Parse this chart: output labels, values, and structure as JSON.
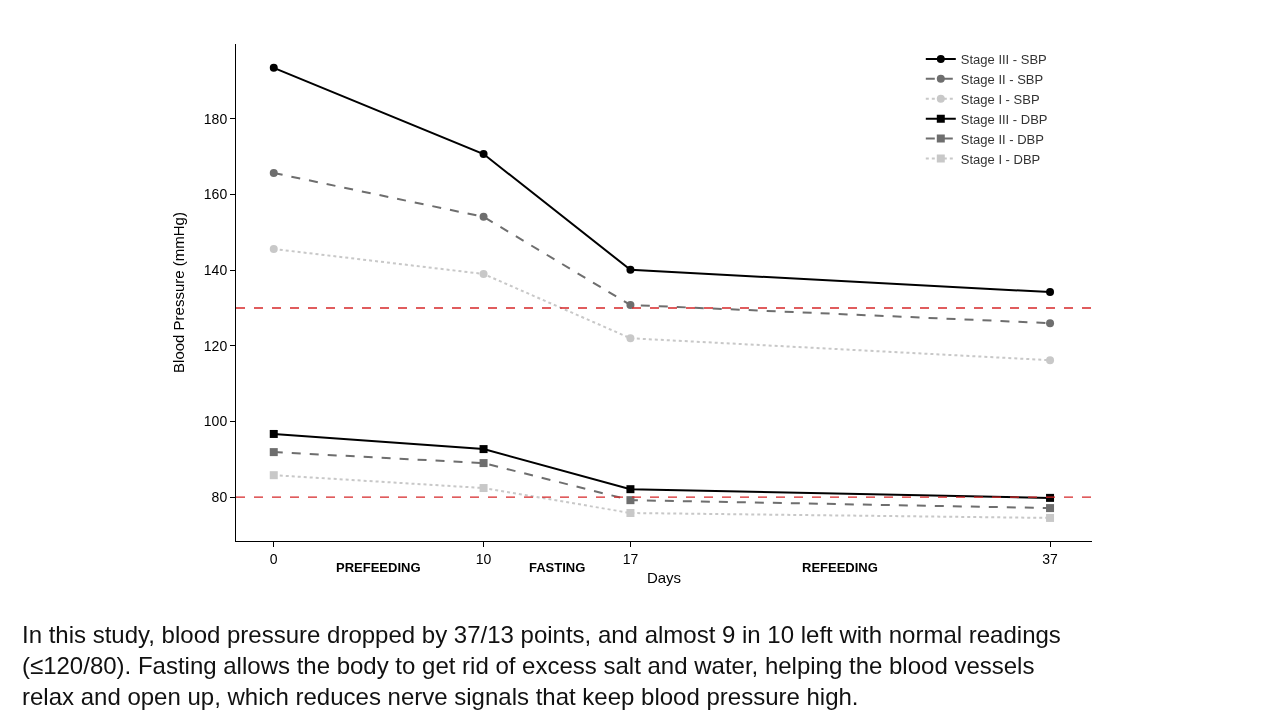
{
  "chart_data": {
    "type": "line",
    "xlabel": "Days",
    "ylabel": "Blood Pressure (mmHg)",
    "x": [
      0,
      10,
      17,
      37
    ],
    "series": [
      {
        "name": "Stage III - SBP",
        "color": "#000000",
        "values": [
          193.5,
          170.7,
          140.1,
          134.2
        ],
        "marker": "circle",
        "line_style": "solid"
      },
      {
        "name": "Stage II - SBP",
        "color": "#6e6e6e",
        "values": [
          165.7,
          154.1,
          130.8,
          126.0
        ],
        "marker": "circle",
        "line_style": "dashed"
      },
      {
        "name": "Stage I - SBP",
        "color": "#c8c8c8",
        "values": [
          145.6,
          139.0,
          122.0,
          116.2
        ],
        "marker": "circle",
        "line_style": "dotted"
      },
      {
        "name": "Stage III - DBP",
        "color": "#000000",
        "values": [
          96.7,
          92.7,
          82.1,
          79.8
        ],
        "marker": "square",
        "line_style": "solid"
      },
      {
        "name": "Stage II - DBP",
        "color": "#6e6e6e",
        "values": [
          91.9,
          89.0,
          79.2,
          77.1
        ],
        "marker": "square",
        "line_style": "dashed"
      },
      {
        "name": "Stage I - DBP",
        "color": "#c8c8c8",
        "values": [
          85.8,
          82.4,
          75.8,
          74.5
        ],
        "marker": "square",
        "line_style": "dotted"
      }
    ],
    "xlim": [
      -1.8,
      39
    ],
    "xticks": [
      0,
      10,
      17,
      37
    ],
    "ylim": [
      68.4,
      199.8
    ],
    "yticks": [
      80,
      100,
      120,
      140,
      160,
      180
    ],
    "ref_lines": [
      {
        "axis": "y",
        "value": 130,
        "color": "#d62728",
        "line_style": "dashed"
      },
      {
        "axis": "y",
        "value": 80,
        "color": "#d62728",
        "line_style": "dashed"
      }
    ],
    "annotations": [
      "PREFEEDING",
      "FASTING",
      "REFEEDING",
      "In this study, blood pressure dropped by 37/13 points, and almost 9 in 10 left with normal readings (≤120/80). Fasting allows the body to get rid of excess salt and water, helping the blood vessels relax and open up, which reduces nerve signals that keep blood pressure high."
    ],
    "legend": "top right"
  }
}
